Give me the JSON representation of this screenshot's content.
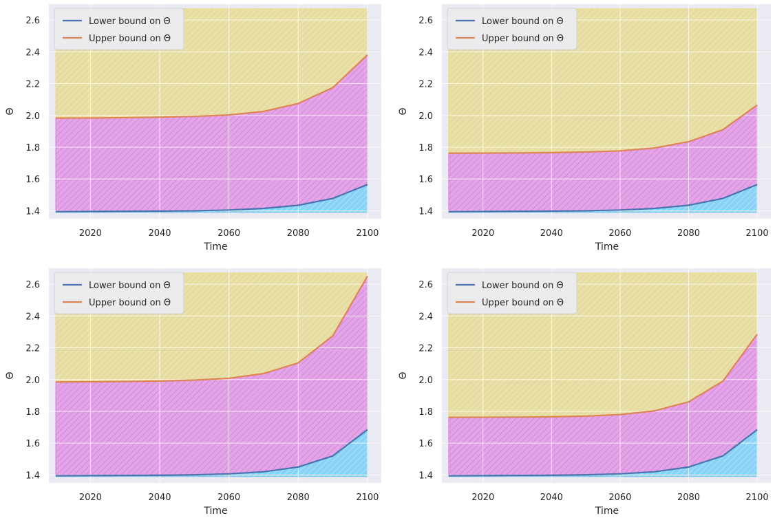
{
  "chart_data": [
    {
      "type": "area",
      "x": [
        2010,
        2020,
        2030,
        2040,
        2050,
        2060,
        2070,
        2080,
        2090,
        2100
      ],
      "xlabel": "Time",
      "ylabel": "Θ",
      "xlim": [
        2008,
        2104
      ],
      "ylim": [
        1.35,
        2.7
      ],
      "xticks": [
        2020,
        2040,
        2060,
        2080,
        2100
      ],
      "yticks": [
        1.4,
        1.6,
        1.8,
        2.0,
        2.2,
        2.4,
        2.6
      ],
      "band_top": 2.67,
      "series": [
        {
          "name": "Lower bound on Θ",
          "color": "#4c72b0",
          "values": [
            1.395,
            1.396,
            1.397,
            1.398,
            1.4,
            1.405,
            1.415,
            1.435,
            1.478,
            1.565
          ]
        },
        {
          "name": "Upper bound on Θ",
          "color": "#dd8452",
          "values": [
            1.983,
            1.984,
            1.986,
            1.989,
            1.994,
            2.003,
            2.025,
            2.075,
            2.175,
            2.38
          ]
        }
      ],
      "grid": true,
      "legend": "upper-left"
    },
    {
      "type": "area",
      "x": [
        2010,
        2020,
        2030,
        2040,
        2050,
        2060,
        2070,
        2080,
        2090,
        2100
      ],
      "xlabel": "Time",
      "ylabel": "Θ",
      "xlim": [
        2008,
        2104
      ],
      "ylim": [
        1.35,
        2.7
      ],
      "xticks": [
        2020,
        2040,
        2060,
        2080,
        2100
      ],
      "yticks": [
        1.4,
        1.6,
        1.8,
        2.0,
        2.2,
        2.4,
        2.6
      ],
      "band_top": 2.67,
      "series": [
        {
          "name": "Lower bound on Θ",
          "color": "#4c72b0",
          "values": [
            1.395,
            1.396,
            1.397,
            1.398,
            1.4,
            1.405,
            1.415,
            1.435,
            1.478,
            1.565
          ]
        },
        {
          "name": "Upper bound on Θ",
          "color": "#dd8452",
          "values": [
            1.762,
            1.763,
            1.764,
            1.766,
            1.77,
            1.777,
            1.795,
            1.835,
            1.91,
            2.065
          ]
        }
      ],
      "grid": true,
      "legend": "upper-left"
    },
    {
      "type": "area",
      "x": [
        2010,
        2020,
        2030,
        2040,
        2050,
        2060,
        2070,
        2080,
        2090,
        2100
      ],
      "xlabel": "Time",
      "ylabel": "Θ",
      "xlim": [
        2008,
        2104
      ],
      "ylim": [
        1.35,
        2.7
      ],
      "xticks": [
        2020,
        2040,
        2060,
        2080,
        2100
      ],
      "yticks": [
        1.4,
        1.6,
        1.8,
        2.0,
        2.2,
        2.4,
        2.6
      ],
      "band_top": 2.67,
      "series": [
        {
          "name": "Lower bound on Θ",
          "color": "#4c72b0",
          "values": [
            1.395,
            1.396,
            1.397,
            1.398,
            1.401,
            1.407,
            1.42,
            1.45,
            1.52,
            1.685
          ]
        },
        {
          "name": "Upper bound on Θ",
          "color": "#dd8452",
          "values": [
            1.985,
            1.986,
            1.988,
            1.991,
            1.997,
            2.008,
            2.038,
            2.105,
            2.275,
            2.65
          ]
        }
      ],
      "grid": true,
      "legend": "upper-left"
    },
    {
      "type": "area",
      "x": [
        2010,
        2020,
        2030,
        2040,
        2050,
        2060,
        2070,
        2080,
        2090,
        2100
      ],
      "xlabel": "Time",
      "ylabel": "Θ",
      "xlim": [
        2008,
        2104
      ],
      "ylim": [
        1.35,
        2.7
      ],
      "xticks": [
        2020,
        2040,
        2060,
        2080,
        2100
      ],
      "yticks": [
        1.4,
        1.6,
        1.8,
        2.0,
        2.2,
        2.4,
        2.6
      ],
      "band_top": 2.67,
      "series": [
        {
          "name": "Lower bound on Θ",
          "color": "#4c72b0",
          "values": [
            1.395,
            1.396,
            1.397,
            1.398,
            1.401,
            1.407,
            1.42,
            1.45,
            1.52,
            1.685
          ]
        },
        {
          "name": "Upper bound on Θ",
          "color": "#dd8452",
          "values": [
            1.762,
            1.763,
            1.764,
            1.766,
            1.77,
            1.78,
            1.803,
            1.86,
            1.99,
            2.285
          ]
        }
      ],
      "grid": true,
      "legend": "upper-left"
    }
  ],
  "colors": {
    "axes_background": "#eaeaf2",
    "grid": "#ffffff",
    "lower_fill": "#88d3f5",
    "middle_fill": "#e4a4e8",
    "upper_fill": "#e8e0a8",
    "lower_line": "#4c72b0",
    "upper_line": "#dd8452"
  }
}
